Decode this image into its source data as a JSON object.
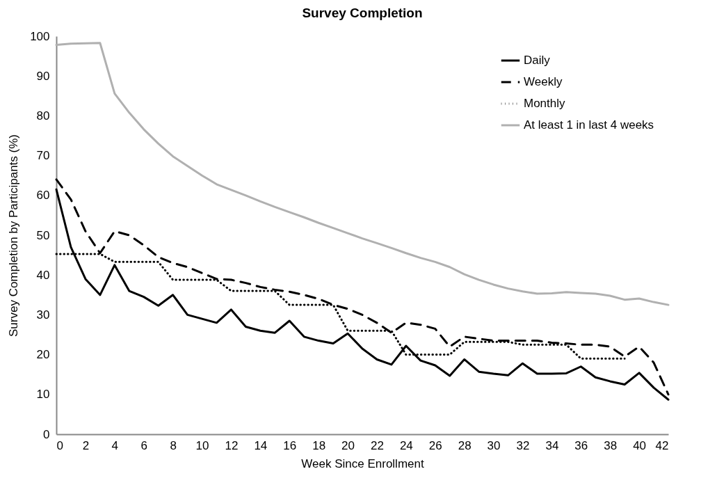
{
  "chart_data": {
    "type": "line",
    "title": "Survey Completion",
    "xlabel": "Week Since Enrollment",
    "ylabel": "Survey Completion by Participants (%)",
    "x": [
      0,
      1,
      2,
      3,
      4,
      5,
      6,
      7,
      8,
      9,
      10,
      11,
      12,
      13,
      14,
      15,
      16,
      17,
      18,
      19,
      20,
      21,
      22,
      23,
      24,
      25,
      26,
      27,
      28,
      29,
      30,
      31,
      32,
      33,
      34,
      35,
      36,
      37,
      38,
      39,
      40,
      41,
      42
    ],
    "xlim": [
      0,
      42
    ],
    "xticks": [
      0,
      2,
      4,
      6,
      8,
      10,
      12,
      14,
      16,
      18,
      20,
      22,
      24,
      26,
      28,
      30,
      32,
      34,
      36,
      38,
      40,
      42
    ],
    "ylim": [
      0,
      100
    ],
    "yticks": [
      0,
      10,
      20,
      30,
      40,
      50,
      60,
      70,
      80,
      90,
      100
    ],
    "grid": false,
    "legend": "top right",
    "series": [
      {
        "name": "Daily",
        "color": "#000000",
        "line_style": "solid",
        "values": [
          61.5,
          47,
          39,
          35,
          42.5,
          36,
          34.5,
          32.3,
          35,
          30,
          29,
          28,
          31.3,
          27,
          26,
          25.5,
          28.5,
          24.5,
          23.5,
          22.8,
          25.3,
          21.5,
          18.8,
          17.5,
          22.2,
          18.5,
          17.3,
          14.7,
          18.8,
          15.7,
          15.2,
          14.8,
          17.8,
          15.2,
          15.2,
          15.3,
          17,
          14.3,
          13.3,
          12.5,
          15.4,
          11.7,
          8.7
        ]
      },
      {
        "name": "Weekly",
        "color": "#000000",
        "line_style": "dashed",
        "values": [
          64,
          59,
          51,
          45.5,
          51,
          50,
          47.5,
          44.5,
          43,
          42,
          40.5,
          39,
          38.8,
          38,
          37,
          36.3,
          35.8,
          35,
          34,
          32.5,
          31.5,
          30,
          28,
          25.5,
          28,
          27.5,
          26.5,
          22,
          24.5,
          24,
          23.5,
          23.5,
          23.5,
          23.5,
          23,
          22.8,
          22.5,
          22.5,
          22,
          19.5,
          22,
          18,
          10
        ]
      },
      {
        "name": "Monthly",
        "color": "#000000",
        "line_style": "dotted",
        "values": [
          45.3,
          45.3,
          45.3,
          45.3,
          43.3,
          43.3,
          43.3,
          43.3,
          38.8,
          38.8,
          38.8,
          38.8,
          36,
          36,
          36,
          36,
          32.5,
          32.5,
          32.5,
          32.5,
          26,
          26,
          26,
          26,
          20,
          20,
          20,
          20,
          23.2,
          23.2,
          23.2,
          23.2,
          22.5,
          22.5,
          22.5,
          22.5,
          19,
          19,
          19,
          19,
          null,
          null,
          null
        ]
      },
      {
        "name": "At least 1 in last 4 weeks",
        "color": "#b0b0b0",
        "line_style": "solid",
        "values": [
          97.8,
          98.1,
          98.2,
          98.3,
          85.6,
          80.8,
          76.6,
          73,
          69.8,
          67.4,
          65,
          62.8,
          61.4,
          60,
          58.5,
          57.1,
          55.8,
          54.5,
          53.1,
          51.8,
          50.5,
          49.2,
          48,
          46.8,
          45.5,
          44.3,
          43.3,
          42,
          40.2,
          38.8,
          37.6,
          36.6,
          35.9,
          35.3,
          35.4,
          35.7,
          35.5,
          35.3,
          34.8,
          33.8,
          34.1,
          33.2,
          32.5
        ]
      }
    ]
  }
}
